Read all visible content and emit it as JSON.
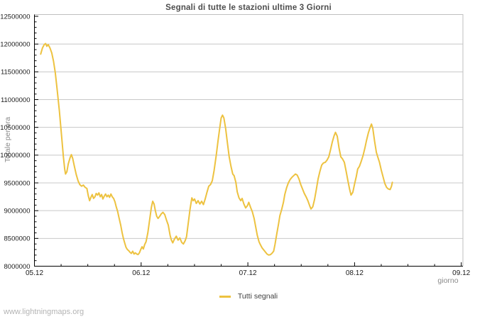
{
  "page": {
    "watermark": "www.lightningmaps.org"
  },
  "colors": {
    "line": "#EDC240",
    "grid": "#c8c8c8",
    "frame": "#bfbfbf",
    "axis": "#000000",
    "title_text": "#4d4d4d",
    "tick_text": "#1c1c1c",
    "muted_text": "#8a8a8a",
    "watermark_text": "#b4b4b4"
  },
  "chart_data": {
    "type": "line",
    "title": "Segnali di tutte le stazioni ultime 3 Giorni",
    "xlabel": "giorno",
    "ylabel": "Totale per ora",
    "grid": "horizontal-only",
    "legend_position": "bottom-center",
    "x_axis": {
      "tick_labels": [
        "05.12",
        "06.12",
        "07.12",
        "08.12",
        "09.12"
      ],
      "range_days": [
        0,
        4
      ],
      "minor_tick_hours": 6
    },
    "y_axis": {
      "min": 8000000,
      "max": 12500000,
      "tick_step": 500000,
      "minor_tick_step": 100000
    },
    "series": [
      {
        "name": "Tutti segnali",
        "color": "#EDC240",
        "points_hours_value": [
          [
            1.4,
            11820000
          ],
          [
            1.8,
            11930000
          ],
          [
            2.2,
            11990000
          ],
          [
            2.5,
            12010000
          ],
          [
            2.8,
            11960000
          ],
          [
            3.1,
            11990000
          ],
          [
            3.5,
            11930000
          ],
          [
            3.9,
            11840000
          ],
          [
            4.3,
            11690000
          ],
          [
            4.7,
            11480000
          ],
          [
            5.1,
            11190000
          ],
          [
            5.6,
            10800000
          ],
          [
            6.1,
            10350000
          ],
          [
            6.5,
            9980000
          ],
          [
            6.8,
            9750000
          ],
          [
            7.0,
            9660000
          ],
          [
            7.3,
            9700000
          ],
          [
            7.6,
            9840000
          ],
          [
            8.0,
            9950000
          ],
          [
            8.3,
            10010000
          ],
          [
            8.6,
            9940000
          ],
          [
            9.0,
            9790000
          ],
          [
            9.4,
            9650000
          ],
          [
            9.8,
            9540000
          ],
          [
            10.2,
            9470000
          ],
          [
            10.6,
            9440000
          ],
          [
            11.0,
            9460000
          ],
          [
            11.4,
            9420000
          ],
          [
            11.8,
            9400000
          ],
          [
            12.1,
            9270000
          ],
          [
            12.4,
            9180000
          ],
          [
            12.7,
            9240000
          ],
          [
            13.0,
            9290000
          ],
          [
            13.3,
            9220000
          ],
          [
            13.6,
            9250000
          ],
          [
            13.9,
            9310000
          ],
          [
            14.2,
            9280000
          ],
          [
            14.5,
            9320000
          ],
          [
            14.8,
            9250000
          ],
          [
            15.1,
            9290000
          ],
          [
            15.4,
            9210000
          ],
          [
            15.7,
            9260000
          ],
          [
            16.0,
            9300000
          ],
          [
            16.3,
            9250000
          ],
          [
            16.6,
            9280000
          ],
          [
            16.9,
            9240000
          ],
          [
            17.2,
            9300000
          ],
          [
            17.5,
            9250000
          ],
          [
            17.8,
            9220000
          ],
          [
            18.1,
            9160000
          ],
          [
            18.4,
            9070000
          ],
          [
            18.7,
            8990000
          ],
          [
            19.0,
            8880000
          ],
          [
            19.4,
            8740000
          ],
          [
            19.7,
            8610000
          ],
          [
            20.0,
            8500000
          ],
          [
            20.3,
            8420000
          ],
          [
            20.6,
            8340000
          ],
          [
            20.9,
            8300000
          ],
          [
            21.2,
            8280000
          ],
          [
            21.5,
            8250000
          ],
          [
            21.8,
            8230000
          ],
          [
            22.1,
            8270000
          ],
          [
            22.4,
            8220000
          ],
          [
            22.7,
            8240000
          ],
          [
            23.0,
            8220000
          ],
          [
            23.3,
            8210000
          ],
          [
            23.6,
            8240000
          ],
          [
            23.9,
            8300000
          ],
          [
            24.2,
            8350000
          ],
          [
            24.5,
            8310000
          ],
          [
            24.8,
            8390000
          ],
          [
            25.1,
            8440000
          ],
          [
            25.5,
            8600000
          ],
          [
            25.9,
            8830000
          ],
          [
            26.3,
            9060000
          ],
          [
            26.6,
            9170000
          ],
          [
            26.9,
            9120000
          ],
          [
            27.2,
            9000000
          ],
          [
            27.5,
            8900000
          ],
          [
            27.8,
            8860000
          ],
          [
            28.1,
            8890000
          ],
          [
            28.5,
            8940000
          ],
          [
            28.9,
            8970000
          ],
          [
            29.3,
            8930000
          ],
          [
            29.7,
            8830000
          ],
          [
            30.1,
            8740000
          ],
          [
            30.5,
            8560000
          ],
          [
            30.8,
            8470000
          ],
          [
            31.1,
            8420000
          ],
          [
            31.5,
            8490000
          ],
          [
            31.9,
            8540000
          ],
          [
            32.3,
            8470000
          ],
          [
            32.7,
            8510000
          ],
          [
            33.1,
            8430000
          ],
          [
            33.5,
            8400000
          ],
          [
            33.9,
            8460000
          ],
          [
            34.2,
            8530000
          ],
          [
            34.6,
            8780000
          ],
          [
            35.0,
            9030000
          ],
          [
            35.4,
            9230000
          ],
          [
            35.7,
            9180000
          ],
          [
            36.0,
            9210000
          ],
          [
            36.4,
            9130000
          ],
          [
            36.8,
            9180000
          ],
          [
            37.2,
            9120000
          ],
          [
            37.6,
            9170000
          ],
          [
            38.0,
            9110000
          ],
          [
            38.4,
            9210000
          ],
          [
            38.8,
            9330000
          ],
          [
            39.2,
            9440000
          ],
          [
            39.6,
            9470000
          ],
          [
            40.0,
            9540000
          ],
          [
            40.4,
            9720000
          ],
          [
            40.9,
            10000000
          ],
          [
            41.3,
            10260000
          ],
          [
            41.7,
            10500000
          ],
          [
            42.0,
            10670000
          ],
          [
            42.3,
            10720000
          ],
          [
            42.6,
            10670000
          ],
          [
            43.0,
            10480000
          ],
          [
            43.4,
            10220000
          ],
          [
            43.8,
            9970000
          ],
          [
            44.2,
            9800000
          ],
          [
            44.6,
            9660000
          ],
          [
            44.9,
            9630000
          ],
          [
            45.3,
            9510000
          ],
          [
            45.6,
            9340000
          ],
          [
            46.0,
            9230000
          ],
          [
            46.4,
            9180000
          ],
          [
            46.7,
            9220000
          ],
          [
            47.1,
            9120000
          ],
          [
            47.5,
            9050000
          ],
          [
            47.9,
            9090000
          ],
          [
            48.2,
            9150000
          ],
          [
            48.6,
            9060000
          ],
          [
            49.0,
            8980000
          ],
          [
            49.4,
            8860000
          ],
          [
            49.8,
            8690000
          ],
          [
            50.1,
            8560000
          ],
          [
            50.5,
            8440000
          ],
          [
            50.8,
            8390000
          ],
          [
            51.2,
            8330000
          ],
          [
            51.6,
            8290000
          ],
          [
            52.0,
            8250000
          ],
          [
            52.3,
            8220000
          ],
          [
            52.7,
            8200000
          ],
          [
            53.1,
            8210000
          ],
          [
            53.4,
            8230000
          ],
          [
            53.8,
            8270000
          ],
          [
            54.1,
            8390000
          ],
          [
            54.5,
            8580000
          ],
          [
            54.9,
            8760000
          ],
          [
            55.2,
            8910000
          ],
          [
            55.6,
            9020000
          ],
          [
            56.0,
            9150000
          ],
          [
            56.3,
            9290000
          ],
          [
            56.7,
            9410000
          ],
          [
            57.1,
            9500000
          ],
          [
            57.5,
            9560000
          ],
          [
            57.9,
            9600000
          ],
          [
            58.3,
            9630000
          ],
          [
            58.7,
            9660000
          ],
          [
            59.1,
            9640000
          ],
          [
            59.5,
            9570000
          ],
          [
            59.9,
            9470000
          ],
          [
            60.3,
            9390000
          ],
          [
            60.7,
            9310000
          ],
          [
            61.1,
            9250000
          ],
          [
            61.5,
            9180000
          ],
          [
            61.9,
            9090000
          ],
          [
            62.2,
            9030000
          ],
          [
            62.6,
            9070000
          ],
          [
            63.0,
            9200000
          ],
          [
            63.4,
            9380000
          ],
          [
            63.8,
            9570000
          ],
          [
            64.2,
            9710000
          ],
          [
            64.6,
            9820000
          ],
          [
            65.0,
            9860000
          ],
          [
            65.4,
            9870000
          ],
          [
            65.8,
            9910000
          ],
          [
            66.2,
            9970000
          ],
          [
            66.6,
            10100000
          ],
          [
            67.0,
            10240000
          ],
          [
            67.4,
            10350000
          ],
          [
            67.7,
            10410000
          ],
          [
            68.1,
            10340000
          ],
          [
            68.5,
            10130000
          ],
          [
            68.9,
            9970000
          ],
          [
            69.3,
            9930000
          ],
          [
            69.7,
            9870000
          ],
          [
            70.1,
            9710000
          ],
          [
            70.5,
            9540000
          ],
          [
            70.9,
            9380000
          ],
          [
            71.2,
            9280000
          ],
          [
            71.6,
            9330000
          ],
          [
            72.0,
            9480000
          ],
          [
            72.4,
            9620000
          ],
          [
            72.7,
            9750000
          ],
          [
            73.1,
            9800000
          ],
          [
            73.5,
            9890000
          ],
          [
            73.9,
            9990000
          ],
          [
            74.3,
            10120000
          ],
          [
            74.7,
            10270000
          ],
          [
            75.1,
            10400000
          ],
          [
            75.5,
            10500000
          ],
          [
            75.8,
            10560000
          ],
          [
            76.1,
            10480000
          ],
          [
            76.5,
            10250000
          ],
          [
            76.9,
            10050000
          ],
          [
            77.2,
            9970000
          ],
          [
            77.6,
            9870000
          ],
          [
            78.0,
            9730000
          ],
          [
            78.4,
            9610000
          ],
          [
            78.8,
            9490000
          ],
          [
            79.2,
            9420000
          ],
          [
            79.6,
            9390000
          ],
          [
            80.0,
            9380000
          ],
          [
            80.3,
            9440000
          ],
          [
            80.5,
            9510000
          ]
        ]
      }
    ]
  }
}
